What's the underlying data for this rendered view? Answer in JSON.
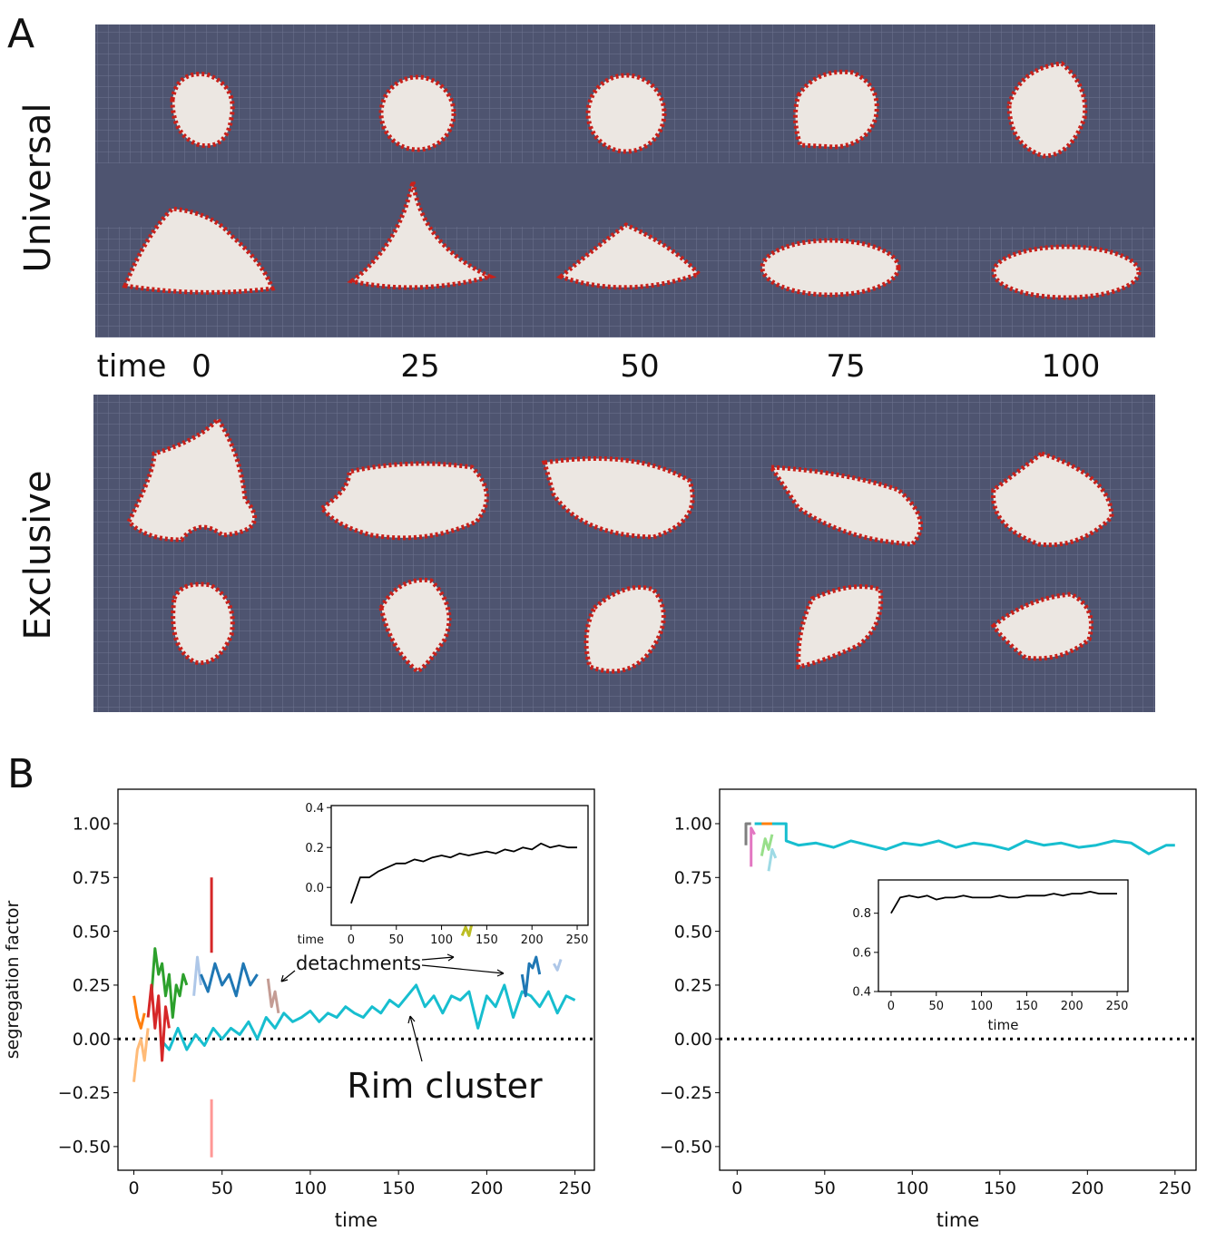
{
  "panel_a": {
    "label": "A",
    "rows": [
      "Universal",
      "Exclusive"
    ],
    "time_label": "time",
    "times": [
      0,
      25,
      50,
      75,
      100
    ]
  },
  "panel_b": {
    "label": "B"
  },
  "chart_data": [
    {
      "type": "line",
      "ylabel": "segregation factor",
      "xlabel": "time",
      "xlim": [
        -9,
        261
      ],
      "ylim": [
        -0.61,
        1.16
      ],
      "xticks": [
        0,
        50,
        100,
        150,
        200,
        250
      ],
      "yticks": [
        {
          "value": 1.0,
          "label": "1.00"
        },
        {
          "value": 0.75,
          "label": "0.75"
        },
        {
          "value": 0.5,
          "label": "0.50"
        },
        {
          "value": 0.25,
          "label": "0.25"
        },
        {
          "value": 0,
          "label": "0.00"
        },
        {
          "value": -0.25,
          "label": "−0.25"
        },
        {
          "value": -0.5,
          "label": "−0.50"
        }
      ],
      "hline": 0,
      "annotations": [
        "detachments",
        "Rim cluster"
      ],
      "series": [
        {
          "color": "#17becf",
          "x": [
            15,
            20,
            25,
            30,
            35,
            40,
            45,
            50,
            55,
            60,
            65,
            70,
            75,
            80,
            85,
            90,
            95,
            100,
            105,
            110,
            115,
            120,
            125,
            130,
            135,
            140,
            145,
            150,
            155,
            160,
            165,
            170,
            175,
            180,
            185,
            190,
            195,
            200,
            205,
            210,
            215,
            220,
            225,
            230,
            235,
            240,
            245,
            250
          ],
          "values": [
            0.0,
            -0.05,
            0.05,
            -0.05,
            0.02,
            -0.03,
            0.05,
            0.0,
            0.05,
            0.02,
            0.08,
            0.0,
            0.1,
            0.05,
            0.12,
            0.08,
            0.1,
            0.13,
            0.08,
            0.12,
            0.1,
            0.15,
            0.12,
            0.1,
            0.15,
            0.12,
            0.18,
            0.15,
            0.2,
            0.25,
            0.15,
            0.2,
            0.12,
            0.2,
            0.18,
            0.22,
            0.05,
            0.2,
            0.15,
            0.25,
            0.1,
            0.22,
            0.2,
            0.15,
            0.22,
            0.12,
            0.2,
            0.18
          ]
        },
        {
          "color": "#ffbb78",
          "x": [
            0,
            2,
            4,
            6,
            8
          ],
          "values": [
            -0.2,
            -0.05,
            0.0,
            -0.1,
            0.05
          ]
        },
        {
          "color": "#ff7f0e",
          "x": [
            0,
            2,
            4,
            6
          ],
          "values": [
            0.2,
            0.1,
            0.05,
            0.12
          ]
        },
        {
          "color": "#2ca02c",
          "x": [
            10,
            12,
            14,
            16,
            18,
            20,
            22,
            24,
            26,
            28,
            30
          ],
          "values": [
            0.2,
            0.42,
            0.3,
            0.35,
            0.2,
            0.3,
            0.1,
            0.25,
            0.2,
            0.3,
            0.25
          ]
        },
        {
          "color": "#d62728",
          "x": [
            8,
            10,
            12,
            14,
            16,
            18,
            20
          ],
          "values": [
            0.1,
            0.25,
            0.05,
            0.2,
            -0.1,
            0.15,
            0.05
          ]
        },
        {
          "color": "#d62728",
          "x": [
            44,
            44
          ],
          "values": [
            0.4,
            0.75
          ]
        },
        {
          "color": "#ff9896",
          "x": [
            44,
            44
          ],
          "values": [
            -0.28,
            -0.55
          ]
        },
        {
          "color": "#aec7e8",
          "x": [
            34,
            36,
            38
          ],
          "values": [
            0.2,
            0.38,
            0.25
          ]
        },
        {
          "color": "#1f77b4",
          "x": [
            38,
            42,
            46,
            50,
            54,
            58,
            62,
            66,
            70
          ],
          "values": [
            0.3,
            0.22,
            0.35,
            0.25,
            0.3,
            0.2,
            0.35,
            0.25,
            0.3
          ]
        },
        {
          "color": "#c49c94",
          "x": [
            76,
            78,
            80,
            82
          ],
          "values": [
            0.28,
            0.15,
            0.22,
            0.12
          ]
        },
        {
          "color": "#bcbd22",
          "x": [
            186,
            188,
            190,
            192
          ],
          "values": [
            0.48,
            0.52,
            0.48,
            0.55
          ]
        },
        {
          "color": "#1f77b4",
          "x": [
            220,
            222,
            224,
            226,
            228,
            230
          ],
          "values": [
            0.3,
            0.2,
            0.35,
            0.33,
            0.38,
            0.3
          ]
        },
        {
          "color": "#aec7e8",
          "x": [
            238,
            240,
            242
          ],
          "values": [
            0.35,
            0.32,
            0.37
          ]
        }
      ]
    },
    {
      "type": "line",
      "xlabel": "time",
      "xlim": [
        -22,
        262
      ],
      "ylim": [
        -0.19,
        0.41
      ],
      "xticks": [
        0,
        50,
        100,
        150,
        200,
        250
      ],
      "yticks": [
        {
          "value": 0,
          "label": "0.0"
        },
        {
          "value": 0.2,
          "label": "0.2"
        },
        {
          "value": 0.4,
          "label": "0.4"
        }
      ],
      "series": [
        {
          "color": "#000000",
          "x": [
            0,
            10,
            20,
            30,
            40,
            50,
            60,
            70,
            80,
            90,
            100,
            110,
            120,
            130,
            140,
            150,
            160,
            170,
            180,
            190,
            200,
            210,
            220,
            230,
            240,
            250
          ],
          "values": [
            -0.08,
            0.05,
            0.05,
            0.08,
            0.1,
            0.12,
            0.12,
            0.14,
            0.13,
            0.15,
            0.16,
            0.15,
            0.17,
            0.16,
            0.17,
            0.18,
            0.17,
            0.19,
            0.18,
            0.2,
            0.19,
            0.22,
            0.2,
            0.21,
            0.2,
            0.2
          ]
        }
      ]
    },
    {
      "type": "line",
      "xlabel": "time",
      "xlim": [
        -10,
        262
      ],
      "ylim": [
        -0.61,
        1.16
      ],
      "xticks": [
        0,
        50,
        100,
        150,
        200,
        250
      ],
      "yticks": [
        {
          "value": 1.0,
          "label": "1.00"
        },
        {
          "value": 0.75,
          "label": "0.75"
        },
        {
          "value": 0.5,
          "label": "0.50"
        },
        {
          "value": 0.25,
          "label": "0.25"
        },
        {
          "value": 0,
          "label": "0.00"
        },
        {
          "value": -0.25,
          "label": "−0.25"
        },
        {
          "value": -0.5,
          "label": "−0.50"
        }
      ],
      "hline": 0,
      "series": [
        {
          "color": "#17becf",
          "x": [
            10,
            28,
            28,
            35,
            45,
            55,
            65,
            75,
            85,
            95,
            105,
            115,
            125,
            135,
            145,
            155,
            165,
            175,
            185,
            195,
            205,
            215,
            225,
            235,
            245,
            250
          ],
          "values": [
            1.0,
            1.0,
            0.92,
            0.9,
            0.91,
            0.89,
            0.92,
            0.9,
            0.88,
            0.91,
            0.9,
            0.92,
            0.89,
            0.91,
            0.9,
            0.88,
            0.92,
            0.9,
            0.91,
            0.89,
            0.9,
            0.92,
            0.91,
            0.86,
            0.9,
            0.9
          ]
        },
        {
          "color": "#7f7f7f",
          "x": [
            5,
            5,
            8
          ],
          "values": [
            0.9,
            1.0,
            1.0
          ]
        },
        {
          "color": "#e377c2",
          "x": [
            8,
            8,
            10
          ],
          "values": [
            0.8,
            0.98,
            0.95
          ]
        },
        {
          "color": "#ff7f0e",
          "x": [
            14,
            16,
            18,
            20
          ],
          "values": [
            1.0,
            1.0,
            1.0,
            1.0
          ]
        },
        {
          "color": "#98df8a",
          "x": [
            14,
            16,
            18,
            20
          ],
          "values": [
            0.85,
            0.93,
            0.88,
            0.95
          ]
        },
        {
          "color": "#9edae5",
          "x": [
            18,
            20,
            22
          ],
          "values": [
            0.78,
            0.88,
            0.84
          ]
        }
      ]
    },
    {
      "type": "line",
      "xlabel": "time",
      "xlim": [
        -14,
        262
      ],
      "ylim": [
        0.4,
        0.97
      ],
      "xticks": [
        0,
        50,
        100,
        150,
        200,
        250
      ],
      "yticks": [
        {
          "value": 0.4,
          "label": "0.4"
        },
        {
          "value": 0.6,
          "label": "0.6"
        },
        {
          "value": 0.8,
          "label": "0.8"
        }
      ],
      "series": [
        {
          "color": "#000000",
          "x": [
            0,
            10,
            20,
            30,
            40,
            50,
            60,
            70,
            80,
            90,
            100,
            110,
            120,
            130,
            140,
            150,
            160,
            170,
            180,
            190,
            200,
            210,
            220,
            230,
            240,
            250
          ],
          "values": [
            0.8,
            0.88,
            0.89,
            0.88,
            0.89,
            0.87,
            0.88,
            0.88,
            0.89,
            0.88,
            0.88,
            0.88,
            0.89,
            0.88,
            0.88,
            0.89,
            0.89,
            0.89,
            0.9,
            0.89,
            0.9,
            0.9,
            0.91,
            0.9,
            0.9,
            0.9
          ]
        }
      ]
    }
  ]
}
